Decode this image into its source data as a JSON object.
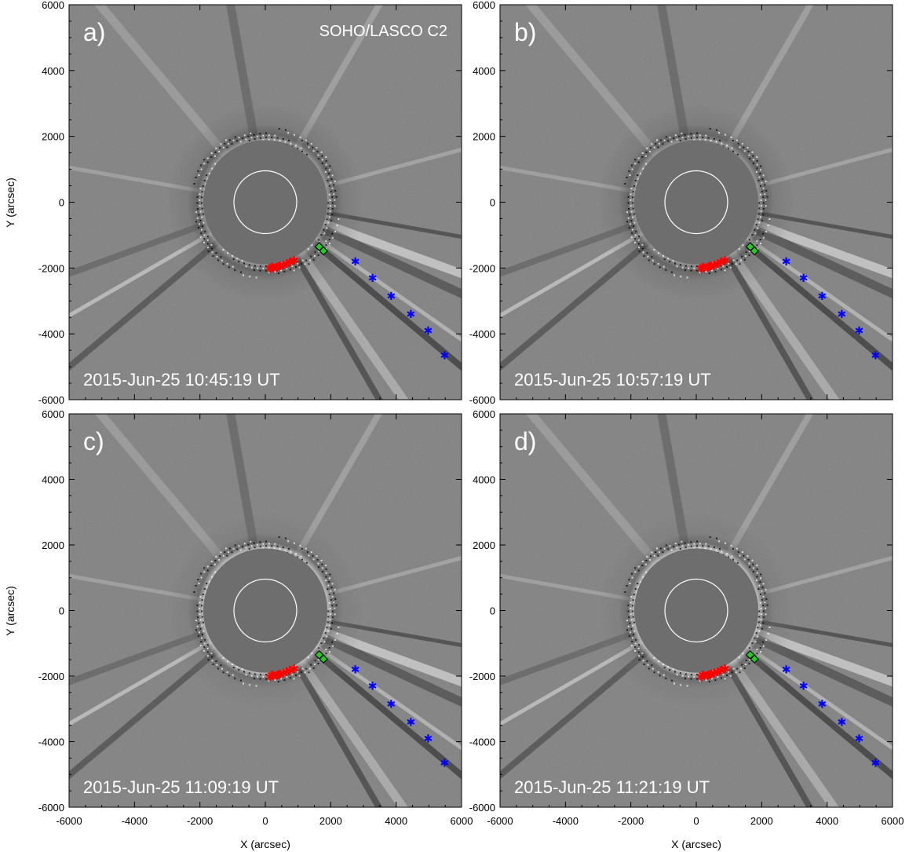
{
  "figure": {
    "instrument": "SOHO/LASCO C2",
    "xlabel": "X (arcsec)",
    "ylabel": "Y (arcsec)",
    "xticks": [
      "-6000",
      "-4000",
      "-2000",
      "0",
      "2000",
      "4000",
      "6000"
    ],
    "yticks": [
      "6000",
      "4000",
      "2000",
      "0",
      "-2000",
      "-4000",
      "-6000"
    ],
    "axis_range": [
      -6000,
      6000
    ],
    "panels": [
      {
        "label": "a)",
        "timestamp": "2015-Jun-25 10:45:19 UT"
      },
      {
        "label": "b)",
        "timestamp": "2015-Jun-25 10:57:19 UT"
      },
      {
        "label": "c)",
        "timestamp": "2015-Jun-25 11:09:19 UT"
      },
      {
        "label": "d)",
        "timestamp": "2015-Jun-25 11:21:19 UT"
      }
    ],
    "marker_colors": {
      "red": "#ff0000",
      "green": "#22cc22",
      "blue": "#0000ff"
    },
    "background_gray": "#808080",
    "occulter_gray": "#6e6e6e"
  }
}
